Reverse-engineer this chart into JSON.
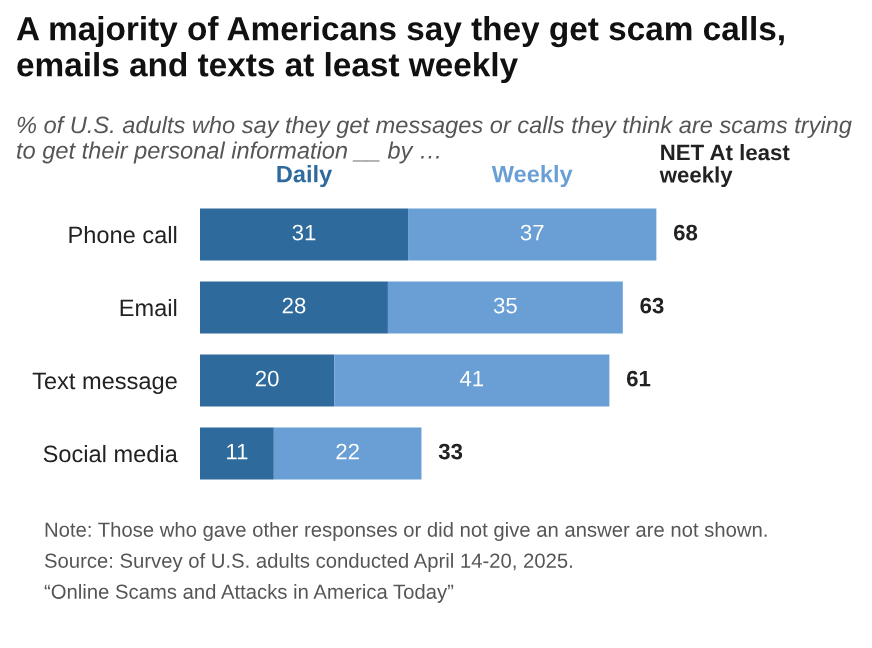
{
  "chart_data": {
    "type": "bar",
    "orientation": "horizontal",
    "stacked": true,
    "title": "A majority of Americans say they get scam calls, emails and texts at least weekly",
    "subtitle": "% of U.S. adults who say they get messages or calls they think are scams trying to get their personal information __ by …",
    "categories": [
      "Phone call",
      "Email",
      "Text message",
      "Social media"
    ],
    "series": [
      {
        "name": "Daily",
        "color": "#2e6a9c",
        "values": [
          31,
          28,
          20,
          11
        ]
      },
      {
        "name": "Weekly",
        "color": "#6a9fd6",
        "values": [
          37,
          35,
          41,
          22
        ]
      }
    ],
    "data_labels": true,
    "totals": [
      "68",
      "63",
      "61",
      "33"
    ],
    "legend": "top",
    "tick_labels": "y",
    "grid": false,
    "annotations": [
      "NET At least\nweekly",
      "Note: Those who gave other responses or did not give an answer are not shown.",
      "Source: Survey of U.S. adults conducted April 14-20, 2025.",
      "“Online Scams and Attacks in America Today”"
    ]
  }
}
